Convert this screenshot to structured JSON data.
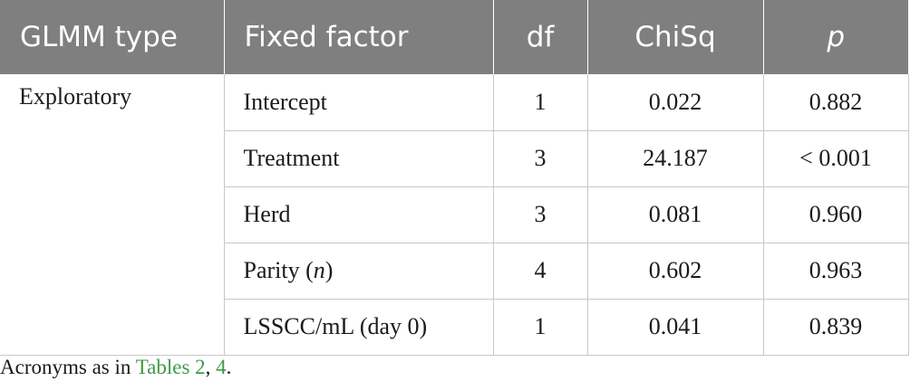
{
  "headers": {
    "glmm_type": "GLMM type",
    "fixed_factor": "Fixed factor",
    "df": "df",
    "chisq": "ChiSq",
    "p": "p"
  },
  "glmm_type_value": "Exploratory",
  "rows": [
    {
      "factor": "Intercept",
      "df": "1",
      "chisq": "0.022",
      "p": "0.882"
    },
    {
      "factor": "Treatment",
      "df": "3",
      "chisq": "24.187",
      "p": "< 0.001"
    },
    {
      "factor": "Herd",
      "df": "3",
      "chisq": "0.081",
      "p": "0.960"
    },
    {
      "factor_prefix": "Parity (",
      "factor_italic": "n",
      "factor_suffix": ")",
      "df": "4",
      "chisq": "0.602",
      "p": "0.963"
    },
    {
      "factor": "LSSCC/mL (day 0)",
      "df": "1",
      "chisq": "0.041",
      "p": "0.839"
    }
  ],
  "footnote": {
    "prefix": "Acronyms as in ",
    "link1": "Tables 2",
    "separator": ", ",
    "link2": "4",
    "suffix": "."
  },
  "colors": {
    "header_bg": "#7f7f7f",
    "link": "#3e9b45",
    "grid": "#c8c8c8"
  }
}
